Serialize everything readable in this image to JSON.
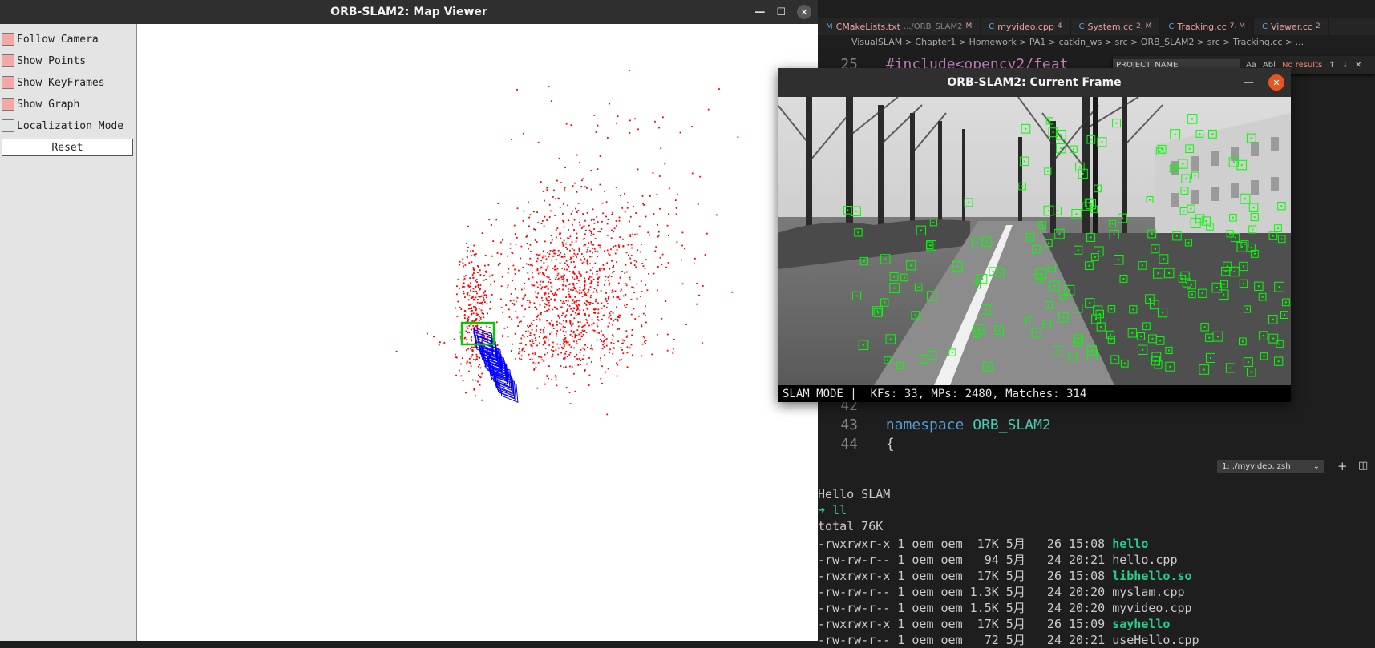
{
  "map_viewer": {
    "title": "ORB-SLAM2: Map Viewer",
    "options": [
      {
        "label": "Follow Camera",
        "checked": true
      },
      {
        "label": "Show Points",
        "checked": true
      },
      {
        "label": "Show KeyFrames",
        "checked": true
      },
      {
        "label": "Show Graph",
        "checked": true
      },
      {
        "label": "Localization Mode",
        "checked": false
      }
    ],
    "reset_label": "Reset",
    "colors": {
      "map_points": "#ff0000",
      "keyframes": "#0000ff",
      "current_camera": "#00cc00"
    }
  },
  "current_frame": {
    "title": "ORB-SLAM2: Current Frame",
    "status": "SLAM MODE |  KFs: 33, MPs: 2480, Matches: 314",
    "feature_color": "#00ff00"
  },
  "editor": {
    "tabs": [
      {
        "icon": "M",
        "label": "CMakeLists.txt",
        "path": ".../ORB_SLAM2",
        "badge": "M"
      },
      {
        "icon": "C",
        "label": "myvideo.cpp",
        "badge": "4"
      },
      {
        "icon": "C",
        "label": "System.cc",
        "badge": "2, M"
      },
      {
        "icon": "C",
        "label": "Tracking.cc",
        "badge": "7, M"
      },
      {
        "icon": "C",
        "label": "Viewer.cc",
        "badge": "2"
      }
    ],
    "breadcrumb": "VisualSLAM > Chapter1 > Homework > PA1 > catkin_ws > src > ORB_SLAM2 > src > Tracking.cc > ...",
    "find": {
      "value": "PROJECT_NAME",
      "opt1": "Aa",
      "opt2": "Abl",
      "result": "No results"
    },
    "lines": [
      {
        "num": "25",
        "text": "#include<opencv2/feat"
      },
      {
        "num": "42",
        "text": ""
      },
      {
        "num": "43",
        "text_kw": "namespace",
        "text_ns": "ORB_SLAM2"
      },
      {
        "num": "44",
        "text": "{"
      }
    ],
    "terminal_select": "1: ./myvideo, zsh",
    "terminal": [
      {
        "text": "Hello SLAM"
      },
      {
        "prompt": "➜",
        "cmd": " ll"
      },
      {
        "text": "total 76K"
      },
      {
        "perm": "-rwxrwxr-x 1 oem oem  17K 5月   26 15:08 ",
        "name": "hello",
        "exec": true
      },
      {
        "perm": "-rw-rw-r-- 1 oem oem   94 5月   24 20:21 ",
        "name": "hello.cpp",
        "exec": false
      },
      {
        "perm": "-rwxrwxr-x 1 oem oem  17K 5月   26 15:08 ",
        "name": "libhello.so",
        "exec": true
      },
      {
        "perm": "-rw-rw-r-- 1 oem oem 1.3K 5月   24 20:20 ",
        "name": "myslam.cpp",
        "exec": false
      },
      {
        "perm": "-rw-rw-r-- 1 oem oem 1.5K 5月   24 20:20 ",
        "name": "myvideo.cpp",
        "exec": false
      },
      {
        "perm": "-rwxrwxr-x 1 oem oem  17K 5月   26 15:09 ",
        "name": "sayhello",
        "exec": true
      },
      {
        "perm": "-rw-rw-r-- 1 oem oem   72 5月   24 20:21 ",
        "name": "useHello.cpp",
        "exec": false
      }
    ]
  }
}
